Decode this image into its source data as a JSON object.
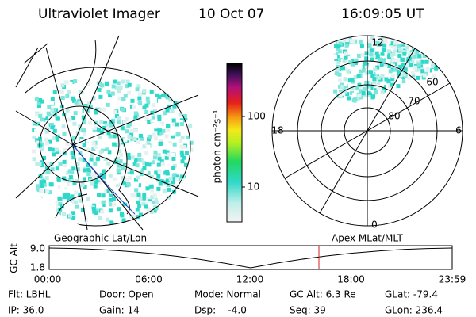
{
  "header": {
    "instrument": "Ultraviolet Imager",
    "date": "10 Oct 07",
    "time": "16:09:05 UT"
  },
  "colorbar": {
    "label": "photon cm⁻²s⁻¹",
    "ticks": [
      10,
      100
    ]
  },
  "polar": {
    "hour_labels": [
      "12",
      "18",
      "6",
      "0"
    ],
    "lat_labels": [
      "60",
      "70",
      "80"
    ]
  },
  "timeline": {
    "left_label": "Geographic Lat/Lon",
    "right_label": "Apex MLat/MLT",
    "axis_label": "GC Alt",
    "y_labels": [
      "9.0",
      "1.8"
    ],
    "x_labels": [
      "00:00",
      "06:00",
      "12:00",
      "18:00",
      "23:59"
    ]
  },
  "footer": {
    "rows": [
      [
        "Flt: LBHL",
        "Door: Open",
        "Mode: Normal",
        "GC Alt: 6.3 Re",
        "GLat: -79.4"
      ],
      [
        "IP: 36.0",
        "Gain: 14",
        "Dsp:    -4.0",
        "Seq: 39",
        "GLon: 236.4"
      ]
    ]
  }
}
